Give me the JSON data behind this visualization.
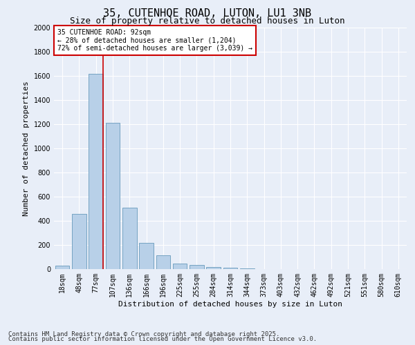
{
  "title1": "35, CUTENHOE ROAD, LUTON, LU1 3NB",
  "title2": "Size of property relative to detached houses in Luton",
  "xlabel": "Distribution of detached houses by size in Luton",
  "ylabel": "Number of detached properties",
  "categories": [
    "18sqm",
    "48sqm",
    "77sqm",
    "107sqm",
    "136sqm",
    "166sqm",
    "196sqm",
    "225sqm",
    "255sqm",
    "284sqm",
    "314sqm",
    "344sqm",
    "373sqm",
    "403sqm",
    "432sqm",
    "462sqm",
    "492sqm",
    "521sqm",
    "551sqm",
    "580sqm",
    "610sqm"
  ],
  "values": [
    30,
    460,
    1620,
    1210,
    510,
    215,
    115,
    45,
    35,
    20,
    10,
    5,
    2,
    0,
    0,
    0,
    0,
    0,
    0,
    0,
    0
  ],
  "bar_color": "#b8d0e8",
  "bar_edge_color": "#6699bb",
  "vline_color": "#cc0000",
  "vline_x_index": 2,
  "annotation_text": "35 CUTENHOE ROAD: 92sqm\n← 28% of detached houses are smaller (1,204)\n72% of semi-detached houses are larger (3,039) →",
  "annotation_box_facecolor": "#ffffff",
  "annotation_box_edgecolor": "#cc0000",
  "ylim": [
    0,
    2000
  ],
  "yticks": [
    0,
    200,
    400,
    600,
    800,
    1000,
    1200,
    1400,
    1600,
    1800,
    2000
  ],
  "background_color": "#e8eef8",
  "grid_color": "#ffffff",
  "footer1": "Contains HM Land Registry data © Crown copyright and database right 2025.",
  "footer2": "Contains public sector information licensed under the Open Government Licence v3.0.",
  "title1_fontsize": 11,
  "title2_fontsize": 9,
  "axis_label_fontsize": 8,
  "tick_fontsize": 7,
  "annotation_fontsize": 7,
  "footer_fontsize": 6.5
}
